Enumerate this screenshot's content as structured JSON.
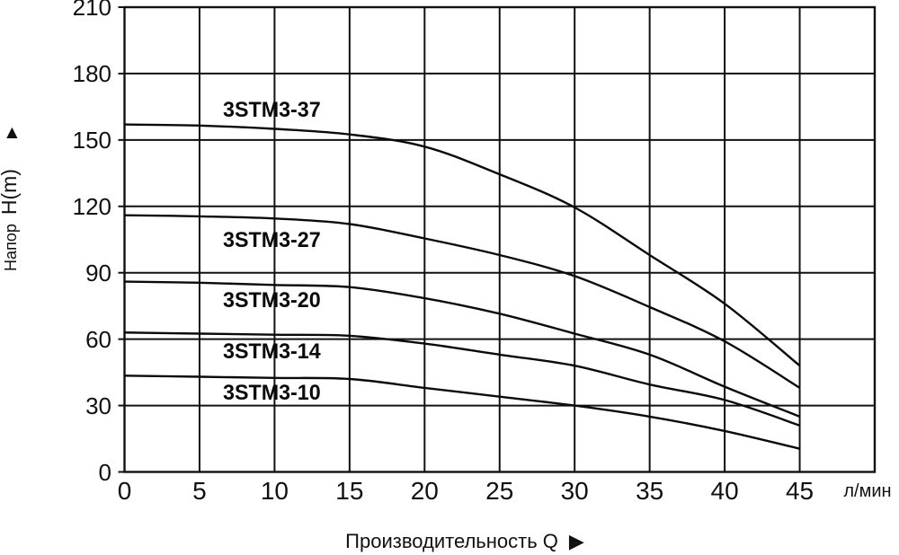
{
  "y_axis": {
    "name_part": "Напор",
    "symbol_part": "H(m)",
    "up_arrow": "▲"
  },
  "x_axis": {
    "title": "Производительность Q",
    "right_arrow": "▶",
    "unit_label": "л/мин"
  },
  "colors": {
    "line": "#111111",
    "curve": "#0a0a0a",
    "background": "#ffffff",
    "text": "#111111"
  },
  "chart_data": {
    "type": "line",
    "title": "",
    "xlabel": "Производительность Q (л/мин)",
    "ylabel": "Напор H(m)",
    "xlim": [
      0,
      50
    ],
    "ylim": [
      0,
      210
    ],
    "grid": true,
    "legend_position": "inline-labels",
    "x_ticks": [
      0,
      5,
      10,
      15,
      20,
      25,
      30,
      35,
      40,
      45
    ],
    "y_ticks": [
      0,
      30,
      60,
      90,
      120,
      150,
      180,
      210
    ],
    "x": [
      0,
      5,
      10,
      15,
      20,
      25,
      30,
      35,
      40,
      45
    ],
    "series": [
      {
        "name": "3STM3-37",
        "values": [
          157,
          156.5,
          155,
          152.5,
          147,
          134.5,
          119.5,
          98,
          76,
          48
        ]
      },
      {
        "name": "3STM3-27",
        "values": [
          116,
          115.5,
          114.5,
          112,
          105.5,
          98,
          88.5,
          74.5,
          59,
          38
        ]
      },
      {
        "name": "3STM3-20",
        "values": [
          86,
          85.5,
          84.5,
          83.5,
          78.5,
          71.5,
          62.5,
          53,
          38.5,
          25
        ]
      },
      {
        "name": "3STM3-14",
        "values": [
          63,
          62.5,
          62,
          61.5,
          58,
          53,
          48,
          39.5,
          32.5,
          21
        ]
      },
      {
        "name": "3STM3-10",
        "values": [
          43.5,
          43,
          42.5,
          42,
          38,
          34,
          30,
          25,
          18.5,
          10.5
        ]
      }
    ]
  }
}
